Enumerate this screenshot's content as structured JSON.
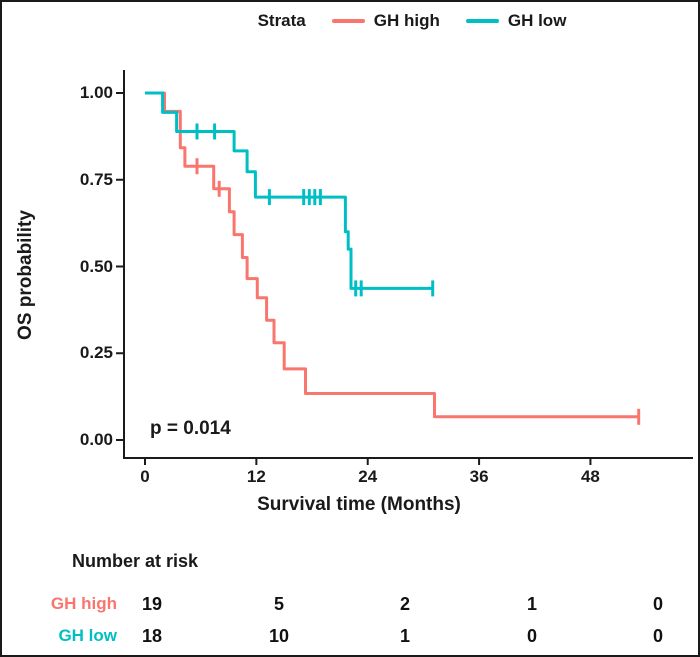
{
  "legend": {
    "title": "Strata",
    "items": [
      {
        "label": "GH high",
        "color": "#F8766D"
      },
      {
        "label": "GH low",
        "color": "#00BFC4"
      }
    ]
  },
  "axes": {
    "y_label": "OS probability",
    "x_label": "Survival time (Months)",
    "y_tick_labels": [
      "1.00",
      "0.75",
      "0.50",
      "0.25",
      "0.00"
    ],
    "x_tick_labels": [
      "0",
      "12",
      "24",
      "36",
      "48"
    ]
  },
  "annotation": {
    "p_value": "p = 0.014"
  },
  "risk_table": {
    "title": "Number at risk",
    "rows": [
      {
        "label": "GH high",
        "color": "#F8766D",
        "values": [
          "19",
          "5",
          "2",
          "1",
          "0"
        ]
      },
      {
        "label": "GH low",
        "color": "#00BFC4",
        "values": [
          "18",
          "10",
          "1",
          "0",
          "0"
        ]
      }
    ]
  },
  "chart_data": {
    "type": "line",
    "subtype": "kaplan-meier-step",
    "title": "",
    "xlabel": "Survival time (Months)",
    "ylabel": "OS probability",
    "xlim": [
      0,
      55
    ],
    "ylim": [
      0,
      1
    ],
    "x_ticks": [
      0,
      12,
      24,
      36,
      48
    ],
    "y_ticks": [
      0,
      0.25,
      0.5,
      0.75,
      1.0
    ],
    "grid": false,
    "legend_position": "top",
    "p_value": 0.014,
    "series": [
      {
        "name": "GH high",
        "color": "#F8766D",
        "steps": [
          [
            0,
            1.0
          ],
          [
            2.1,
            0.947
          ],
          [
            3.8,
            0.842
          ],
          [
            4.3,
            0.789
          ],
          [
            7.4,
            0.724
          ],
          [
            9.1,
            0.658
          ],
          [
            9.6,
            0.592
          ],
          [
            10.5,
            0.526
          ],
          [
            11.0,
            0.465
          ],
          [
            12.1,
            0.41
          ],
          [
            13.1,
            0.345
          ],
          [
            13.9,
            0.28
          ],
          [
            15.0,
            0.205
          ],
          [
            17.3,
            0.134
          ],
          [
            31.2,
            0.067
          ]
        ],
        "end_time": 53.2,
        "censors": [
          [
            5.6,
            0.789
          ],
          [
            8.0,
            0.724
          ],
          [
            53.2,
            0.067
          ]
        ]
      },
      {
        "name": "GH low",
        "color": "#00BFC4",
        "steps": [
          [
            0,
            1.0
          ],
          [
            1.9,
            0.944
          ],
          [
            3.4,
            0.889
          ],
          [
            9.6,
            0.833
          ],
          [
            11.0,
            0.773
          ],
          [
            11.9,
            0.7
          ],
          [
            21.6,
            0.6
          ],
          [
            21.9,
            0.55
          ],
          [
            22.2,
            0.437
          ]
        ],
        "end_time": 31.0,
        "censors": [
          [
            5.6,
            0.889
          ],
          [
            7.5,
            0.889
          ],
          [
            13.4,
            0.7
          ],
          [
            17.1,
            0.7
          ],
          [
            17.7,
            0.7
          ],
          [
            18.3,
            0.7
          ],
          [
            18.9,
            0.7
          ],
          [
            22.7,
            0.437
          ],
          [
            23.3,
            0.437
          ],
          [
            31.0,
            0.437
          ]
        ]
      }
    ],
    "number_at_risk": {
      "times": [
        0,
        12,
        24,
        36,
        48
      ],
      "GH high": [
        19,
        5,
        2,
        1,
        0
      ],
      "GH low": [
        18,
        10,
        1,
        0,
        0
      ]
    }
  }
}
